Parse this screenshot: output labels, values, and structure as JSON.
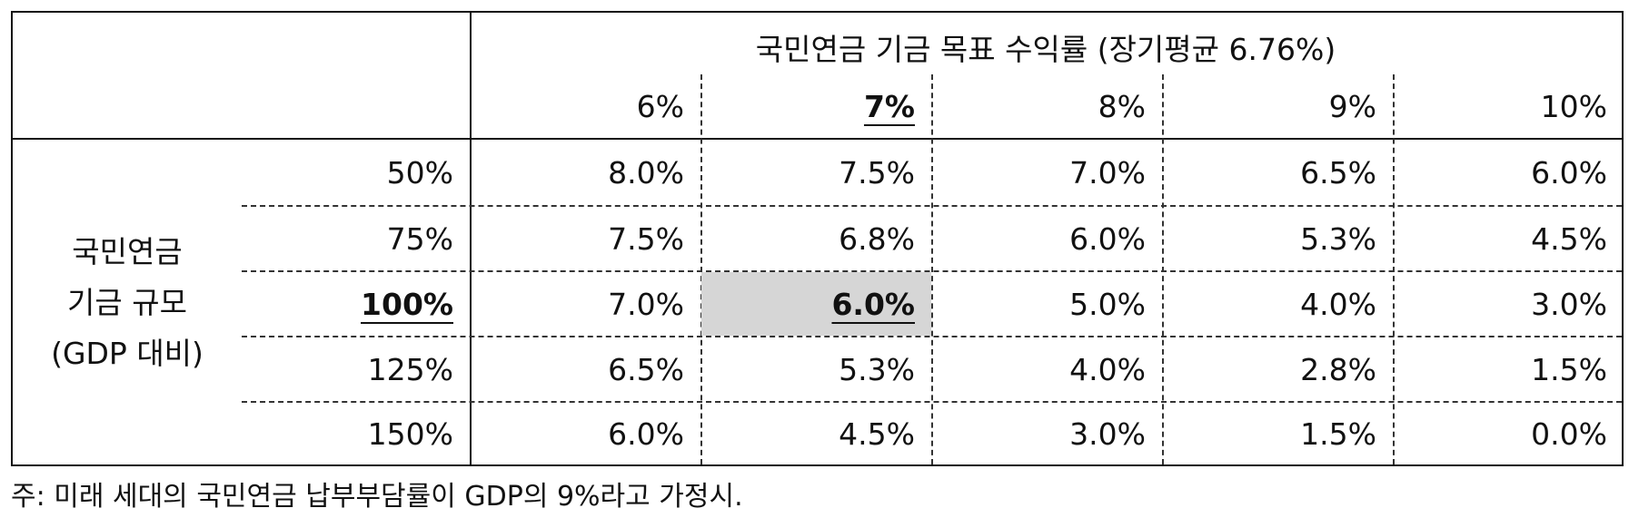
{
  "header": {
    "title": "국민연금 기금 목표 수익률 (장기평균 6.76%)",
    "columns": [
      "6%",
      "7%",
      "8%",
      "9%",
      "10%"
    ]
  },
  "row_label": {
    "line1": "국민연금",
    "line2": "기금 규모",
    "line3": "(GDP 대비)"
  },
  "rows": [
    {
      "label": "50%",
      "values": [
        "8.0%",
        "7.5%",
        "7.0%",
        "6.5%",
        "6.0%"
      ]
    },
    {
      "label": "75%",
      "values": [
        "7.5%",
        "6.8%",
        "6.0%",
        "5.3%",
        "4.5%"
      ]
    },
    {
      "label": "100%",
      "values": [
        "7.0%",
        "6.0%",
        "5.0%",
        "4.0%",
        "3.0%"
      ]
    },
    {
      "label": "125%",
      "values": [
        "6.5%",
        "5.3%",
        "4.0%",
        "2.8%",
        "1.5%"
      ]
    },
    {
      "label": "150%",
      "values": [
        "6.0%",
        "4.5%",
        "3.0%",
        "1.5%",
        "0.0%"
      ]
    }
  ],
  "note": "주: 미래 세대의 국민연금 납부부담률이 GDP의 9%라고 가정시."
}
